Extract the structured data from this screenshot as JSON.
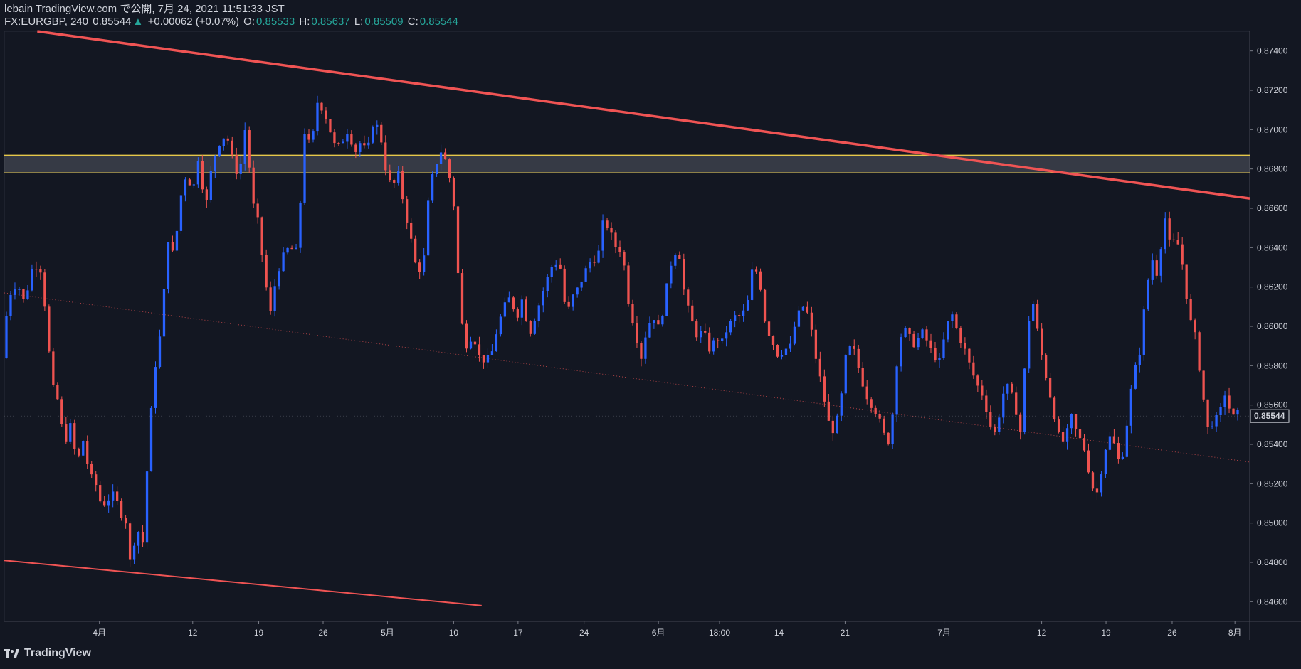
{
  "header": {
    "published": "lebain TradingView.com で公開, 7月 24, 2021 11:51:33 JST",
    "symbol": "FX:EURGBP, 240",
    "last": "0.85544",
    "change_icon": "triangle-up-icon",
    "change": "+0.00062 (+0.07%)",
    "o_label": "O:",
    "o_value": "0.85533",
    "h_label": "H:",
    "h_value": "0.85637",
    "l_label": "L:",
    "l_value": "0.85509",
    "c_label": "C:",
    "c_value": "0.85544"
  },
  "footer": {
    "brand": "TradingView",
    "logo_icon": "tradingview-logo-icon"
  },
  "colors": {
    "background": "#131722",
    "up": "#2962ff",
    "down": "#ef5350",
    "trend": "#f05454",
    "zone": "#e6c84a"
  },
  "chart_data": {
    "type": "candlestick",
    "ylim": [
      0.845,
      0.875
    ],
    "y_ticks": [
      "0.87400",
      "0.87200",
      "0.87000",
      "0.86800",
      "0.86600",
      "0.86400",
      "0.86200",
      "0.86000",
      "0.85800",
      "0.85600",
      "0.85400",
      "0.85200",
      "0.85000",
      "0.84800",
      "0.84600"
    ],
    "x_ticks": [
      {
        "label": "4月",
        "t": 0.0764
      },
      {
        "label": "12",
        "t": 0.1513
      },
      {
        "label": "19",
        "t": 0.2043
      },
      {
        "label": "26",
        "t": 0.256
      },
      {
        "label": "5月",
        "t": 0.3077
      },
      {
        "label": "10",
        "t": 0.3608
      },
      {
        "label": "17",
        "t": 0.4125
      },
      {
        "label": "24",
        "t": 0.4655
      },
      {
        "label": "6月",
        "t": 0.5252
      },
      {
        "label": "18:00",
        "t": 0.5743
      },
      {
        "label": "14",
        "t": 0.622
      },
      {
        "label": "21",
        "t": 0.6751
      },
      {
        "label": "7月",
        "t": 0.7546
      },
      {
        "label": "12",
        "t": 0.8329
      },
      {
        "label": "19",
        "t": 0.8846
      },
      {
        "label": "26",
        "t": 0.9377
      },
      {
        "label": "8月",
        "t": 0.9881
      }
    ],
    "last_price": "0.85544",
    "zone": [
      0.8678,
      0.8687
    ],
    "trendlines": [
      {
        "name": "upper",
        "p1": [
          0.0265,
          0.875
        ],
        "p2": [
          1.0,
          0.8665
        ]
      },
      {
        "name": "lower",
        "p1": [
          0.0,
          0.8481
        ],
        "p2": [
          0.3833,
          0.8458
        ]
      },
      {
        "name": "mid-dotted",
        "p1": [
          0.0,
          0.8617
        ],
        "p2": [
          1.0,
          0.8531
        ]
      }
    ],
    "price_path": [
      [
        0.0,
        0.8584
      ],
      [
        0.005,
        0.8615
      ],
      [
        0.012,
        0.8622
      ],
      [
        0.018,
        0.8612
      ],
      [
        0.025,
        0.8632
      ],
      [
        0.032,
        0.8628
      ],
      [
        0.035,
        0.8605
      ],
      [
        0.04,
        0.857
      ],
      [
        0.045,
        0.8562
      ],
      [
        0.05,
        0.854
      ],
      [
        0.055,
        0.855
      ],
      [
        0.06,
        0.853
      ],
      [
        0.065,
        0.8542
      ],
      [
        0.07,
        0.8525
      ],
      [
        0.075,
        0.852
      ],
      [
        0.08,
        0.8508
      ],
      [
        0.085,
        0.8512
      ],
      [
        0.09,
        0.8515
      ],
      [
        0.095,
        0.8505
      ],
      [
        0.1,
        0.85
      ],
      [
        0.103,
        0.8478
      ],
      [
        0.108,
        0.8498
      ],
      [
        0.113,
        0.849
      ],
      [
        0.118,
        0.8545
      ],
      [
        0.123,
        0.858
      ],
      [
        0.128,
        0.86
      ],
      [
        0.133,
        0.8645
      ],
      [
        0.138,
        0.8635
      ],
      [
        0.143,
        0.8665
      ],
      [
        0.148,
        0.8678
      ],
      [
        0.153,
        0.8668
      ],
      [
        0.158,
        0.8688
      ],
      [
        0.163,
        0.8658
      ],
      [
        0.168,
        0.868
      ],
      [
        0.173,
        0.8692
      ],
      [
        0.18,
        0.8698
      ],
      [
        0.185,
        0.8685
      ],
      [
        0.19,
        0.8675
      ],
      [
        0.196,
        0.8705
      ],
      [
        0.2,
        0.8665
      ],
      [
        0.205,
        0.8655
      ],
      [
        0.21,
        0.863
      ],
      [
        0.215,
        0.8605
      ],
      [
        0.22,
        0.8625
      ],
      [
        0.225,
        0.8635
      ],
      [
        0.23,
        0.864
      ],
      [
        0.237,
        0.8638
      ],
      [
        0.243,
        0.87
      ],
      [
        0.248,
        0.869
      ],
      [
        0.253,
        0.8714
      ],
      [
        0.258,
        0.871
      ],
      [
        0.263,
        0.87
      ],
      [
        0.268,
        0.869
      ],
      [
        0.273,
        0.8694
      ],
      [
        0.278,
        0.87
      ],
      [
        0.283,
        0.8688
      ],
      [
        0.288,
        0.8694
      ],
      [
        0.293,
        0.8688
      ],
      [
        0.298,
        0.8704
      ],
      [
        0.303,
        0.87
      ],
      [
        0.308,
        0.868
      ],
      [
        0.313,
        0.867
      ],
      [
        0.318,
        0.8678
      ],
      [
        0.323,
        0.866
      ],
      [
        0.328,
        0.8645
      ],
      [
        0.333,
        0.8628
      ],
      [
        0.338,
        0.863
      ],
      [
        0.343,
        0.867
      ],
      [
        0.348,
        0.8682
      ],
      [
        0.353,
        0.869
      ],
      [
        0.358,
        0.868
      ],
      [
        0.363,
        0.866
      ],
      [
        0.368,
        0.8605
      ],
      [
        0.373,
        0.859
      ],
      [
        0.378,
        0.8596
      ],
      [
        0.383,
        0.8585
      ],
      [
        0.388,
        0.8582
      ],
      [
        0.393,
        0.8586
      ],
      [
        0.398,
        0.86
      ],
      [
        0.403,
        0.861
      ],
      [
        0.408,
        0.8615
      ],
      [
        0.413,
        0.8604
      ],
      [
        0.418,
        0.8615
      ],
      [
        0.423,
        0.8595
      ],
      [
        0.428,
        0.8605
      ],
      [
        0.433,
        0.8615
      ],
      [
        0.438,
        0.8625
      ],
      [
        0.443,
        0.8633
      ],
      [
        0.448,
        0.863
      ],
      [
        0.453,
        0.8605
      ],
      [
        0.458,
        0.8615
      ],
      [
        0.463,
        0.862
      ],
      [
        0.468,
        0.8628
      ],
      [
        0.473,
        0.8634
      ],
      [
        0.478,
        0.8634
      ],
      [
        0.483,
        0.8655
      ],
      [
        0.488,
        0.8648
      ],
      [
        0.493,
        0.864
      ],
      [
        0.498,
        0.8638
      ],
      [
        0.503,
        0.8612
      ],
      [
        0.508,
        0.8598
      ],
      [
        0.513,
        0.8584
      ],
      [
        0.518,
        0.86
      ],
      [
        0.523,
        0.8605
      ],
      [
        0.528,
        0.8598
      ],
      [
        0.533,
        0.8618
      ],
      [
        0.538,
        0.8635
      ],
      [
        0.543,
        0.864
      ],
      [
        0.548,
        0.8615
      ],
      [
        0.553,
        0.8604
      ],
      [
        0.558,
        0.8595
      ],
      [
        0.563,
        0.8598
      ],
      [
        0.568,
        0.8588
      ],
      [
        0.573,
        0.8594
      ],
      [
        0.578,
        0.8592
      ],
      [
        0.583,
        0.86
      ],
      [
        0.588,
        0.8605
      ],
      [
        0.593,
        0.8605
      ],
      [
        0.598,
        0.861
      ],
      [
        0.603,
        0.8632
      ],
      [
        0.608,
        0.8624
      ],
      [
        0.613,
        0.86
      ],
      [
        0.618,
        0.8593
      ],
      [
        0.623,
        0.8585
      ],
      [
        0.628,
        0.8588
      ],
      [
        0.633,
        0.859
      ],
      [
        0.638,
        0.8605
      ],
      [
        0.643,
        0.861
      ],
      [
        0.648,
        0.8605
      ],
      [
        0.653,
        0.8585
      ],
      [
        0.658,
        0.857
      ],
      [
        0.663,
        0.8552
      ],
      [
        0.668,
        0.8546
      ],
      [
        0.673,
        0.856
      ],
      [
        0.678,
        0.8588
      ],
      [
        0.683,
        0.859
      ],
      [
        0.688,
        0.8578
      ],
      [
        0.693,
        0.8566
      ],
      [
        0.698,
        0.856
      ],
      [
        0.703,
        0.8555
      ],
      [
        0.708,
        0.8545
      ],
      [
        0.713,
        0.854
      ],
      [
        0.718,
        0.858
      ],
      [
        0.723,
        0.86
      ],
      [
        0.728,
        0.8595
      ],
      [
        0.733,
        0.859
      ],
      [
        0.738,
        0.8598
      ],
      [
        0.743,
        0.8592
      ],
      [
        0.748,
        0.8585
      ],
      [
        0.753,
        0.8582
      ],
      [
        0.758,
        0.86
      ],
      [
        0.763,
        0.8606
      ],
      [
        0.768,
        0.8595
      ],
      [
        0.773,
        0.8588
      ],
      [
        0.778,
        0.8578
      ],
      [
        0.783,
        0.857
      ],
      [
        0.788,
        0.8564
      ],
      [
        0.793,
        0.855
      ],
      [
        0.798,
        0.8545
      ],
      [
        0.803,
        0.8565
      ],
      [
        0.808,
        0.857
      ],
      [
        0.813,
        0.856
      ],
      [
        0.818,
        0.8545
      ],
      [
        0.823,
        0.86
      ],
      [
        0.828,
        0.8612
      ],
      [
        0.833,
        0.859
      ],
      [
        0.838,
        0.8575
      ],
      [
        0.843,
        0.856
      ],
      [
        0.848,
        0.8545
      ],
      [
        0.853,
        0.854
      ],
      [
        0.858,
        0.8555
      ],
      [
        0.863,
        0.8545
      ],
      [
        0.868,
        0.854
      ],
      [
        0.873,
        0.8525
      ],
      [
        0.878,
        0.8512
      ],
      [
        0.883,
        0.8528
      ],
      [
        0.888,
        0.8545
      ],
      [
        0.893,
        0.854
      ],
      [
        0.898,
        0.8528
      ],
      [
        0.903,
        0.855
      ],
      [
        0.908,
        0.8575
      ],
      [
        0.913,
        0.8585
      ],
      [
        0.918,
        0.8615
      ],
      [
        0.923,
        0.8635
      ],
      [
        0.928,
        0.8625
      ],
      [
        0.933,
        0.8658
      ],
      [
        0.938,
        0.864
      ],
      [
        0.943,
        0.8645
      ],
      [
        0.948,
        0.863
      ],
      [
        0.953,
        0.8605
      ],
      [
        0.958,
        0.8595
      ],
      [
        0.963,
        0.857
      ],
      [
        0.968,
        0.8548
      ],
      [
        0.973,
        0.8552
      ],
      [
        0.978,
        0.8555
      ],
      [
        0.98,
        0.857
      ],
      [
        0.984,
        0.856
      ],
      [
        0.99,
        0.8552
      ],
      [
        0.992,
        0.8556
      ]
    ]
  }
}
